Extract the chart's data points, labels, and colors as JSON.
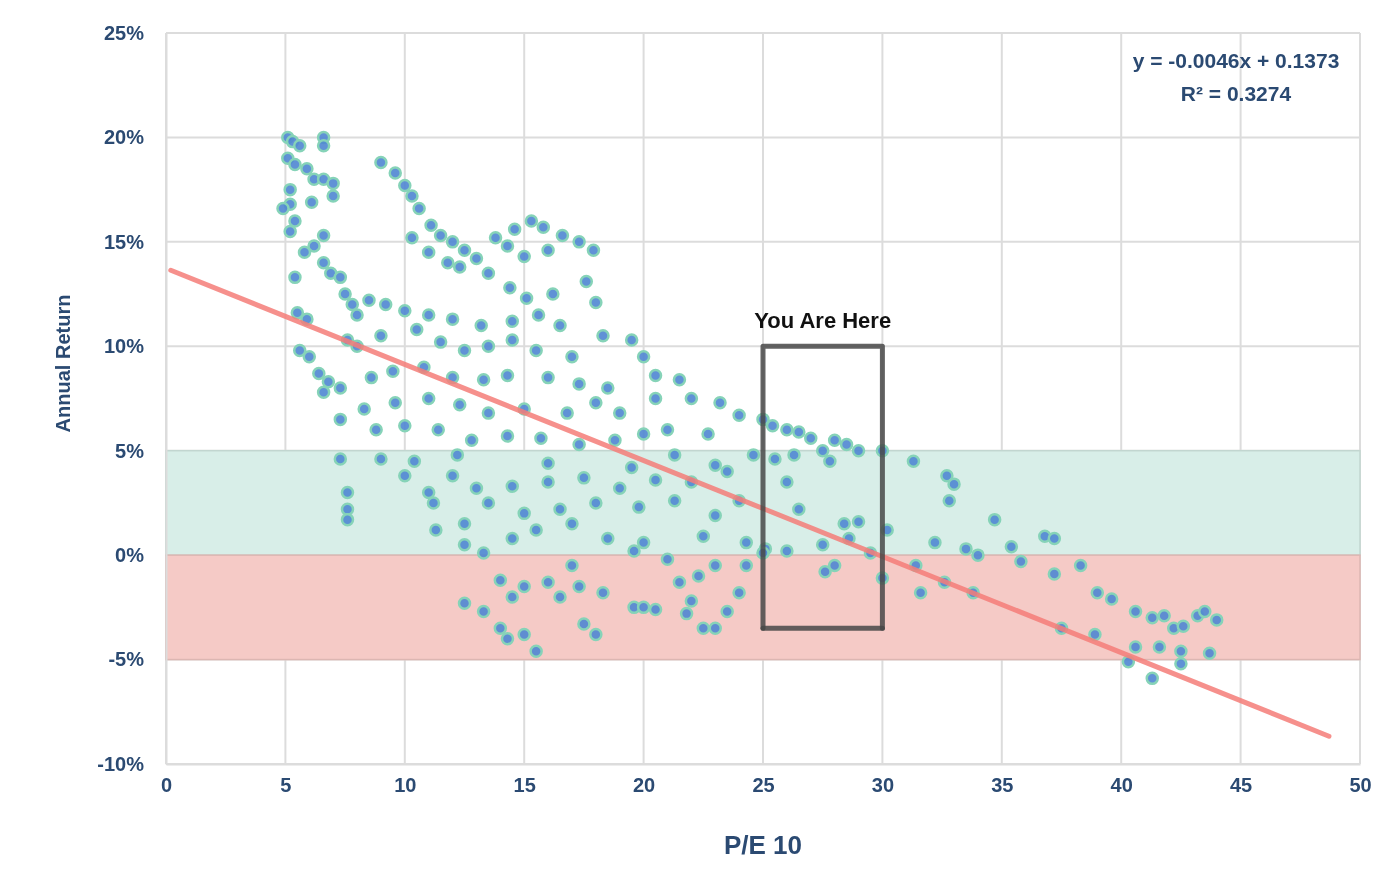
{
  "chart_data": {
    "type": "scatter",
    "xlabel": "P/E 10",
    "ylabel": "Annual Return",
    "xlim": [
      0,
      50
    ],
    "xticks": [
      0,
      5,
      10,
      15,
      20,
      25,
      30,
      35,
      40,
      45,
      50
    ],
    "ylim": [
      -10,
      25
    ],
    "yticks": [
      {
        "value": -10,
        "label": "-10%"
      },
      {
        "value": -5,
        "label": "-5%"
      },
      {
        "value": 0,
        "label": "0%"
      },
      {
        "value": 5,
        "label": "5%"
      },
      {
        "value": 10,
        "label": "10%"
      },
      {
        "value": 15,
        "label": "15%"
      },
      {
        "value": 20,
        "label": "20%"
      },
      {
        "value": 25,
        "label": "25%"
      }
    ],
    "grid": true,
    "marker": "circle",
    "bands": [
      {
        "axis": "y",
        "from": 0,
        "to": 5,
        "color": "#d8eee8"
      },
      {
        "axis": "y",
        "from": -5,
        "to": 0,
        "color": "#f5cac6"
      }
    ],
    "annotations": [
      "y = -0.0046x + 0.1373",
      "R² = 0.3274",
      "You Are Here"
    ],
    "series": [
      {
        "color": "#4f86d1",
        "x": [
          5.1,
          5.3,
          5.6,
          6.6,
          6.6,
          5.1,
          5.4,
          5.9,
          6.2,
          6.6,
          7,
          5.2,
          5.2,
          4.9,
          5.4,
          6.1,
          7,
          5.2,
          6.6,
          6.2,
          5.8,
          6.6,
          6.9,
          5.4,
          7.3,
          7.5,
          7.8,
          8,
          5.5,
          5.9,
          5.6,
          6,
          6.4,
          6.8,
          6.6,
          7.3,
          7.6,
          9,
          9.6,
          10,
          10.3,
          10.6,
          10.3,
          11.1,
          11.5,
          12,
          12.5,
          11,
          12.3,
          13,
          11.8,
          13.8,
          14.6,
          15.3,
          15.8,
          16.6,
          17.3,
          17.9,
          17.6,
          14.3,
          15,
          16,
          13.5,
          15.1,
          16.2,
          14.4,
          8.5,
          9.2,
          10,
          11,
          12,
          13.2,
          14.5,
          15.6,
          16.5,
          18,
          18.3,
          8,
          9,
          10.5,
          11.5,
          12.5,
          13.5,
          14.5,
          15.5,
          17,
          19.5,
          20,
          8.6,
          9.5,
          10.8,
          12,
          13.3,
          14.3,
          16,
          17.3,
          18.5,
          20.5,
          21.5,
          8.3,
          9.6,
          11,
          12.3,
          13.5,
          15,
          16.8,
          18,
          19,
          20.5,
          22,
          23.2,
          8.8,
          10,
          11.4,
          12.8,
          14.3,
          15.7,
          17.3,
          18.8,
          20,
          21,
          22.7,
          24,
          25,
          7.3,
          7.3,
          9,
          10.4,
          12.2,
          16,
          19.5,
          21.3,
          23,
          24.6,
          7.6,
          7.6,
          7.6,
          10,
          11,
          12,
          13,
          14.5,
          16,
          17.5,
          19,
          20.5,
          22,
          23.5,
          11.2,
          12.5,
          13.5,
          15,
          16.5,
          18,
          19.8,
          21.3,
          23,
          24,
          11.3,
          12.5,
          14.5,
          15.5,
          17,
          18.5,
          20,
          22.5,
          24.3,
          13.3,
          19.6,
          12.5,
          13.3,
          14,
          14.5,
          14,
          14.3,
          15,
          15.5,
          15,
          16,
          16.5,
          17,
          17.3,
          17.5,
          18,
          18.3,
          19.6,
          20.5,
          21,
          21.5,
          22,
          22.3,
          22.5,
          23,
          23.5,
          24,
          24.3,
          20,
          21.8,
          23,
          25.4,
          26,
          26.5,
          27,
          28,
          28.5,
          29,
          30,
          26.3,
          27.5,
          25.5,
          27.8,
          26,
          26.5,
          28.4,
          29,
          27.5,
          25.1,
          26,
          28.6,
          30.2,
          29.5,
          27.6,
          28,
          30,
          25,
          31.3,
          32.7,
          33,
          32.8,
          34.7,
          32.2,
          33.5,
          34,
          35.4,
          36.8,
          37.2,
          35.8,
          37.2,
          38.3,
          31.4,
          31.6,
          32.6,
          33.8,
          37.5,
          38.9,
          39,
          39.6,
          40.6,
          41.3,
          41.8,
          42.2,
          42.6,
          43.2,
          43.5,
          44,
          40.6,
          41.6,
          42.5,
          43.7,
          40.3,
          42.5,
          41.3
        ],
        "values": [
          20,
          19.8,
          19.6,
          20,
          19.6,
          19,
          18.7,
          18.5,
          18,
          18,
          17.8,
          17.5,
          16.8,
          16.6,
          16,
          16.9,
          17.2,
          15.5,
          15.3,
          14.8,
          14.5,
          14,
          13.5,
          13.3,
          13.3,
          12.5,
          12,
          11.5,
          11.6,
          11.3,
          9.8,
          9.5,
          8.7,
          8.3,
          7.8,
          8,
          10.3,
          18.8,
          18.3,
          17.7,
          17.2,
          16.6,
          15.2,
          15.8,
          15.3,
          15,
          14.6,
          14.5,
          13.8,
          14.2,
          14,
          15.2,
          15.6,
          16,
          15.7,
          15.3,
          15,
          14.6,
          13.1,
          14.8,
          14.3,
          14.6,
          13.5,
          12.3,
          12.5,
          12.8,
          12.2,
          12,
          11.7,
          11.5,
          11.3,
          11,
          11.2,
          11.5,
          11,
          12.1,
          10.5,
          10,
          10.5,
          10.8,
          10.2,
          9.8,
          10,
          10.3,
          9.8,
          9.5,
          10.3,
          9.5,
          8.5,
          8.8,
          9,
          8.5,
          8.4,
          8.6,
          8.5,
          8.2,
          8,
          8.6,
          8.4,
          7,
          7.3,
          7.5,
          7.2,
          6.8,
          7,
          6.8,
          7.3,
          6.8,
          7.5,
          7.5,
          7.3,
          6,
          6.2,
          6,
          5.5,
          5.7,
          5.6,
          5.3,
          5.5,
          5.8,
          6,
          5.8,
          6.7,
          6.5,
          6.5,
          4.6,
          4.6,
          4.5,
          4.8,
          4.4,
          4.2,
          4.8,
          4.3,
          4.8,
          3,
          2.2,
          1.7,
          3.8,
          3,
          3.8,
          3.2,
          3.3,
          3.5,
          3.7,
          3.2,
          3.6,
          3.5,
          4,
          2.5,
          1.5,
          2.5,
          2,
          2.2,
          2.5,
          2.3,
          2.6,
          1.9,
          2.6,
          1.2,
          0.5,
          0.8,
          1.2,
          1.5,
          0.8,
          0.6,
          0.9,
          0.6,
          0.1,
          0.2,
          -2.3,
          -2.7,
          -1.2,
          -2,
          -3.5,
          -4,
          -3.8,
          -4.6,
          -1.5,
          -1.3,
          -2,
          -0.5,
          -1.5,
          -3.3,
          -3.8,
          -1.8,
          -2.5,
          -2.6,
          -0.2,
          -1.3,
          -2.2,
          -1,
          -3.5,
          -0.5,
          -2.7,
          -1.8,
          -0.5,
          -2.5,
          -2.8,
          -3.5,
          6.2,
          6,
          5.9,
          5.6,
          5.5,
          5.3,
          5,
          5,
          4.8,
          5,
          4.6,
          4.5,
          3.5,
          2.2,
          1.5,
          1.6,
          0.5,
          0.3,
          0.2,
          0.8,
          1.2,
          0.1,
          -0.8,
          -0.5,
          -1.1,
          0.1,
          4.5,
          3.8,
          3.4,
          2.6,
          1.7,
          0.6,
          0.3,
          0,
          0.4,
          0.9,
          0.8,
          -0.3,
          -0.9,
          -0.5,
          -0.5,
          -1.8,
          -1.3,
          -1.8,
          -3.5,
          -3.8,
          -1.8,
          -2.1,
          -2.7,
          -3,
          -2.9,
          -3.5,
          -3.4,
          -2.9,
          -2.7,
          -3.1,
          -4.4,
          -4.4,
          -4.6,
          -4.7,
          -5.1,
          -5.2,
          -5.9
        ]
      },
      {
        "type": "line",
        "marker": "none",
        "color": "#f47c78",
        "x": [
          0.2,
          48.7
        ],
        "values": [
          13.64,
          -8.67
        ]
      },
      {
        "type": "line",
        "marker": "none",
        "color": "#484848",
        "x": [
          25,
          25,
          30,
          30
        ],
        "values": [
          -3.5,
          10,
          10,
          -3.5
        ]
      },
      {
        "type": "line",
        "marker": "none",
        "color": "#484848",
        "x": [
          25,
          30
        ],
        "values": [
          -3.5,
          -3.5
        ]
      }
    ]
  }
}
